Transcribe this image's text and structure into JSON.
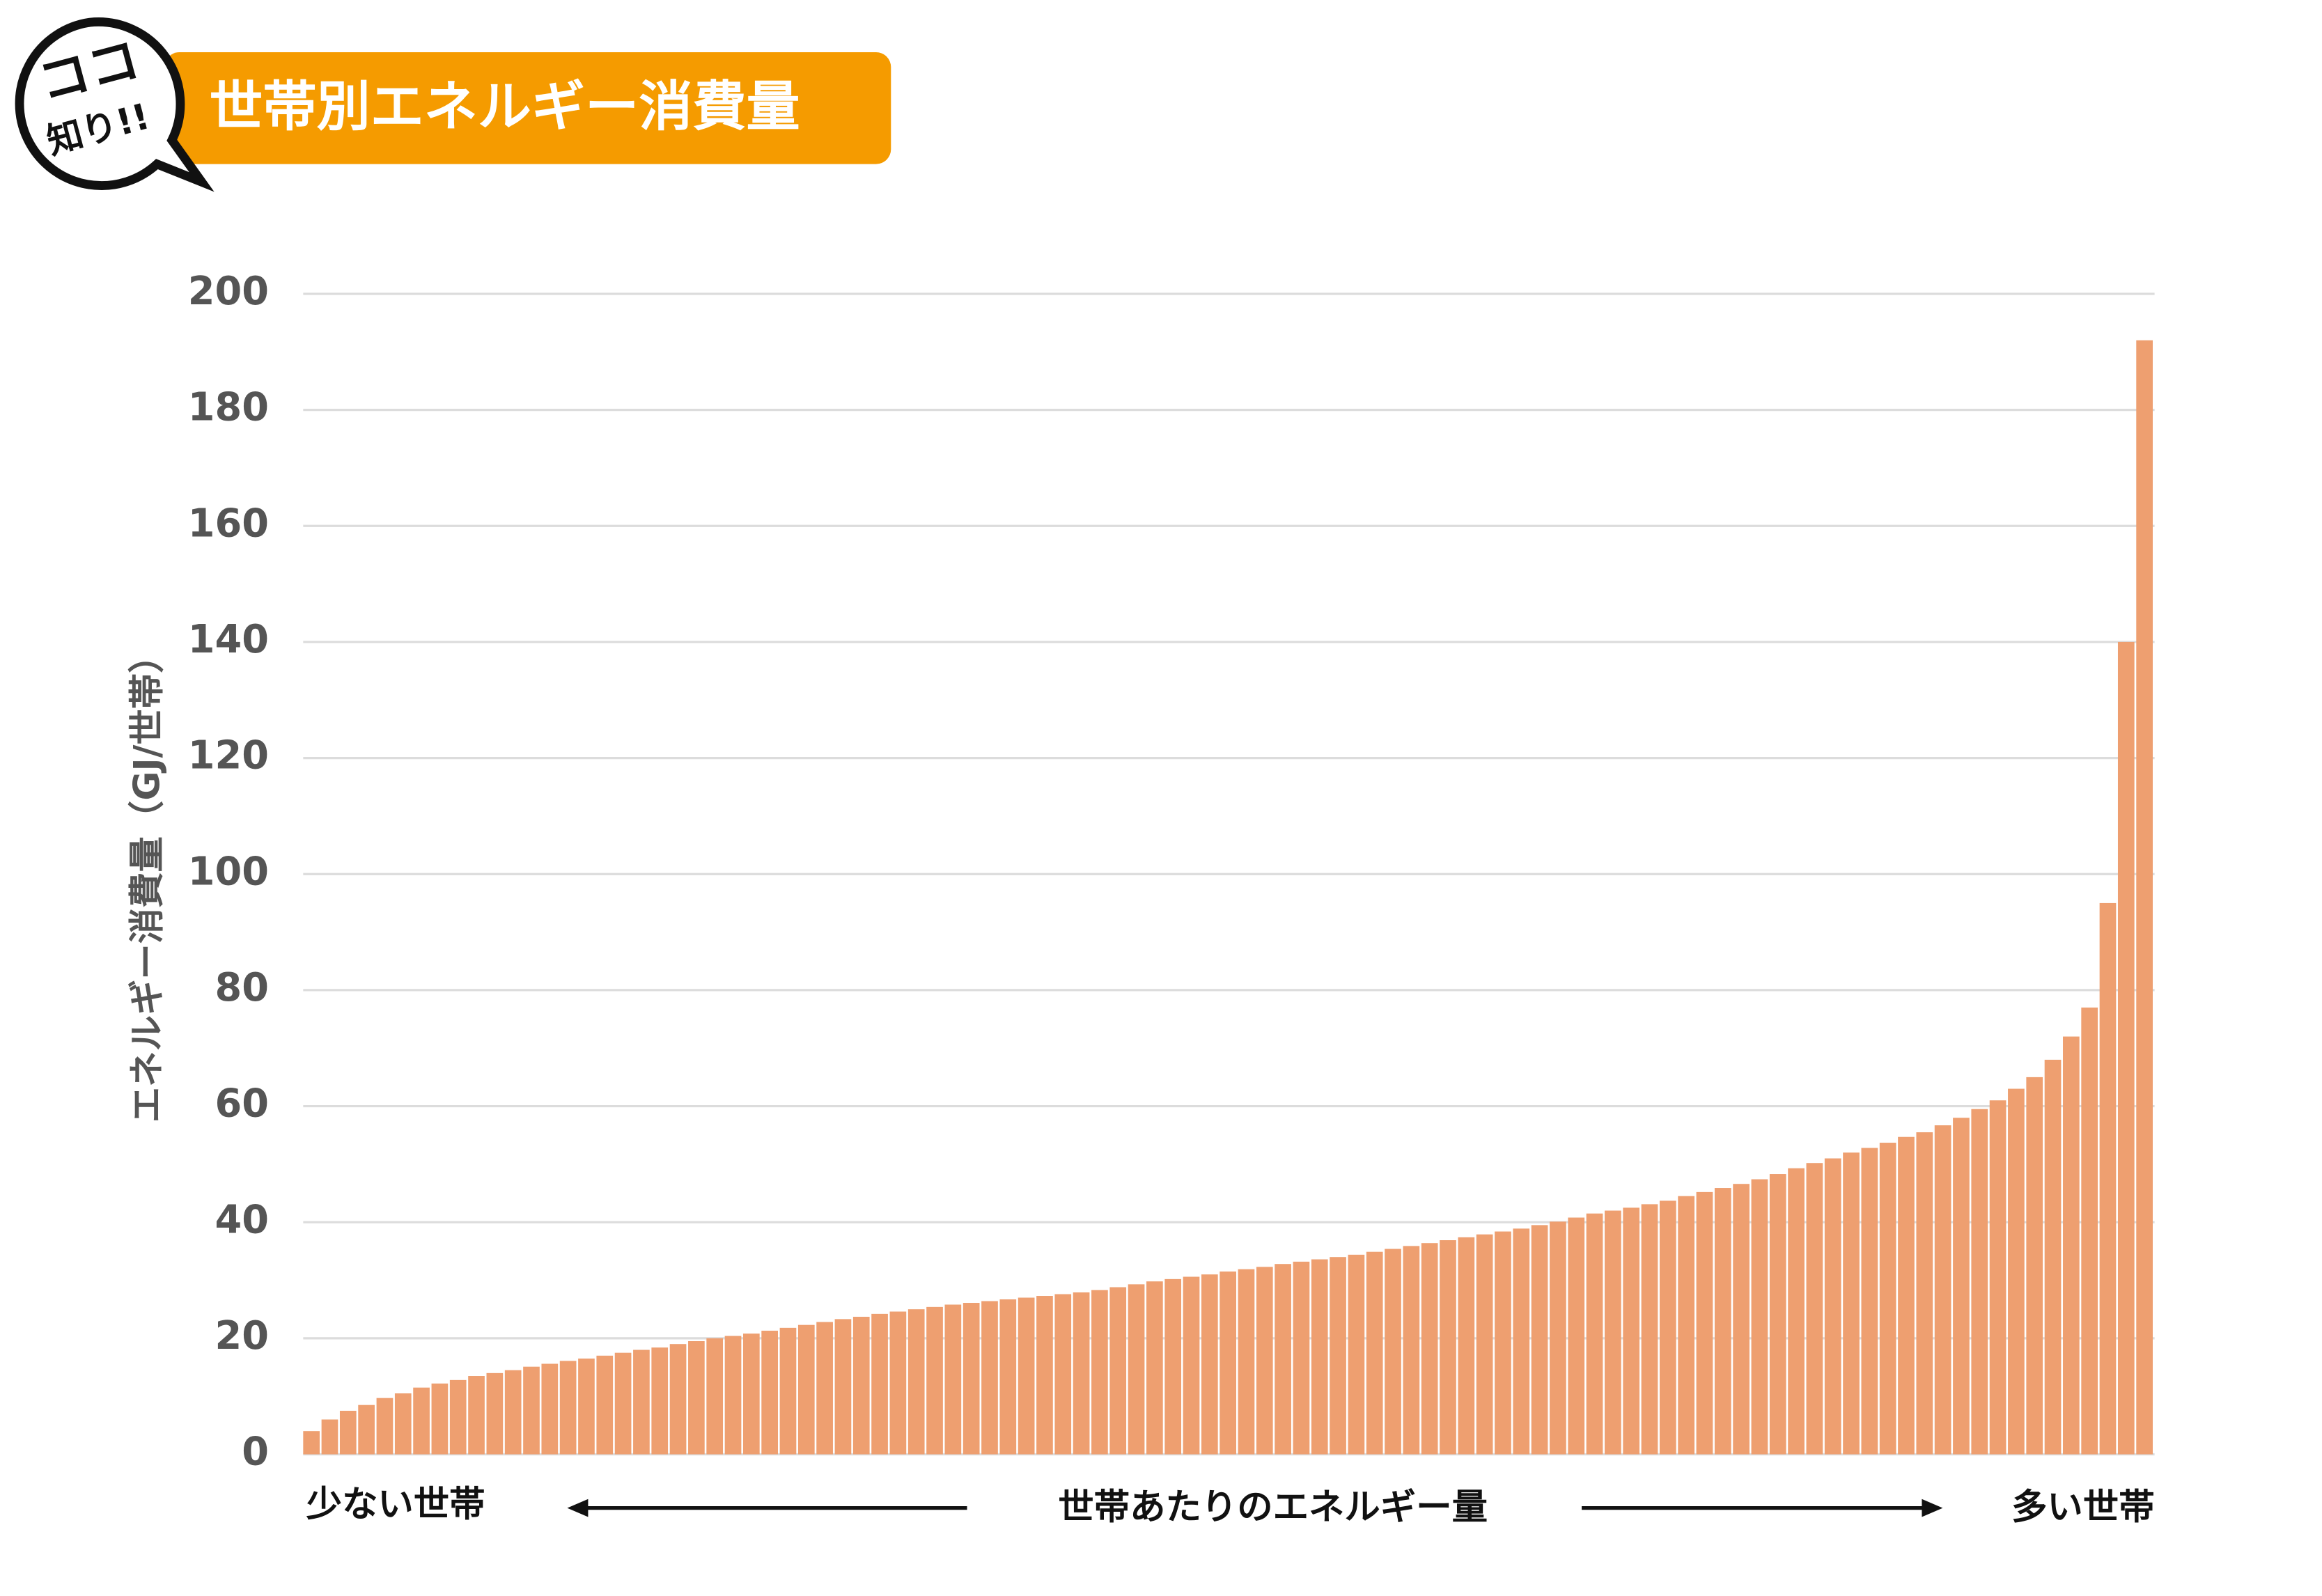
{
  "chart_data": {
    "type": "bar",
    "badge": [
      "ココ",
      "知り!!"
    ],
    "title": "世帯別エネルギー消費量",
    "ylabel": "エネルギー消費量（GJ/世帯）",
    "xlabel": "世帯あたりのエネルギー量",
    "x_left_label": "少ない世帯",
    "x_right_label": "多い世帯",
    "color": "#ee9f70",
    "ylim": [
      0,
      200
    ],
    "yticks": [
      0,
      20,
      40,
      60,
      80,
      100,
      120,
      140,
      160,
      180,
      200
    ],
    "grid": true,
    "values": [
      4,
      6,
      7.5,
      8.5,
      9.7,
      10.5,
      11.5,
      12.2,
      12.8,
      13.5,
      14,
      14.5,
      15.1,
      15.6,
      16.1,
      16.5,
      17,
      17.5,
      18,
      18.4,
      19,
      19.5,
      20,
      20.4,
      20.8,
      21.3,
      21.8,
      22.3,
      22.8,
      23.3,
      23.7,
      24.2,
      24.6,
      25,
      25.4,
      25.8,
      26.1,
      26.4,
      26.7,
      27,
      27.3,
      27.6,
      27.9,
      28.3,
      28.8,
      29.3,
      29.8,
      30.2,
      30.6,
      31,
      31.5,
      31.9,
      32.3,
      32.8,
      33.2,
      33.6,
      34,
      34.4,
      34.9,
      35.4,
      35.9,
      36.4,
      36.9,
      37.4,
      37.9,
      38.4,
      38.9,
      39.5,
      40.1,
      40.8,
      41.5,
      42,
      42.5,
      43.1,
      43.7,
      44.5,
      45.2,
      45.9,
      46.6,
      47.4,
      48.3,
      49.3,
      50.2,
      51,
      52,
      52.8,
      53.7,
      54.7,
      55.5,
      56.7,
      58,
      59.5,
      61,
      63,
      65,
      68,
      72,
      77,
      95,
      140,
      192
    ]
  }
}
